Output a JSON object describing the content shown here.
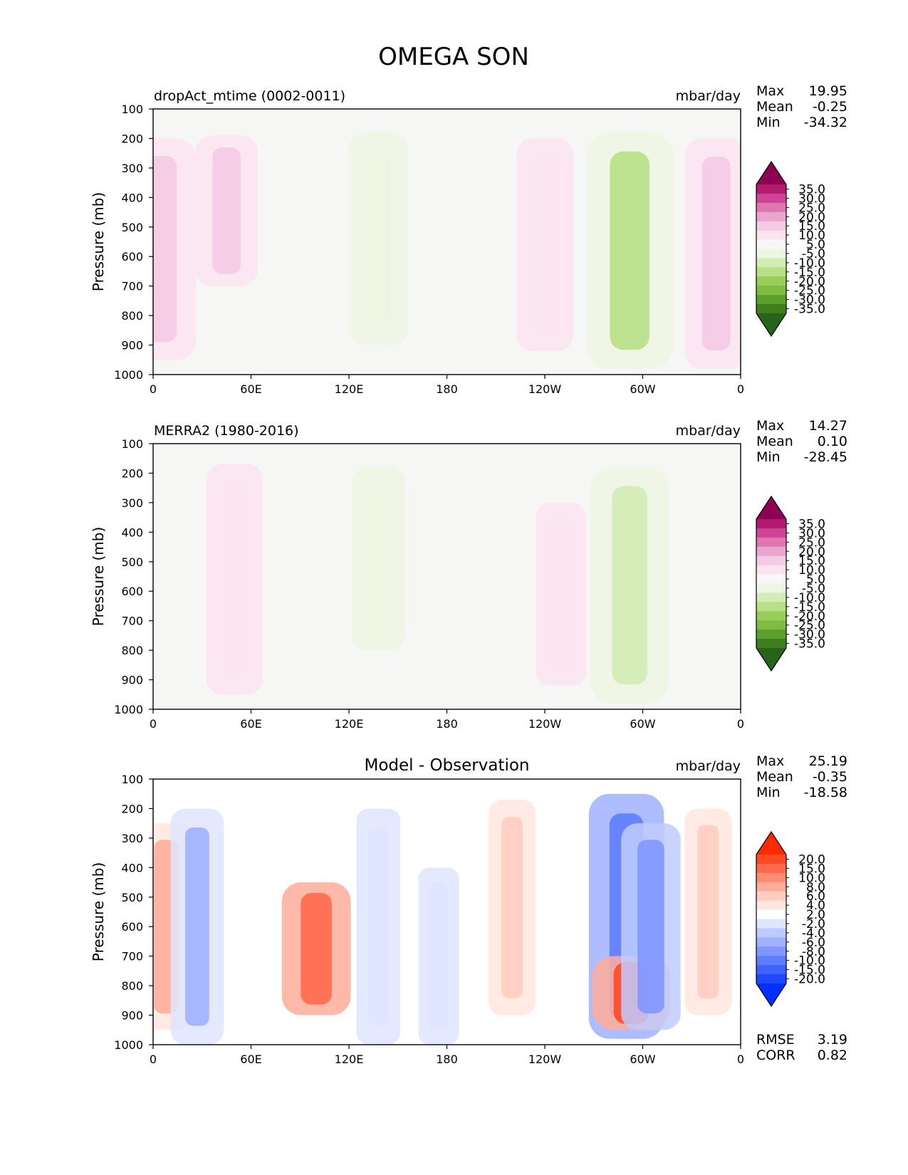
{
  "title": "OMEGA SON",
  "chart_data": [
    {
      "type": "heatmap",
      "title": "dropAct_mtime (0002-0011)",
      "units": "mbar/day",
      "ylabel": "Pressure (mb)",
      "ylim": [
        1000,
        100
      ],
      "xticks": [
        "0",
        "60E",
        "120E",
        "180",
        "120W",
        "60W",
        "0"
      ],
      "yticks": [
        "100",
        "200",
        "300",
        "400",
        "500",
        "600",
        "700",
        "800",
        "900",
        "1000"
      ],
      "stats": [
        {
          "label": "Max",
          "value": "19.95"
        },
        {
          "label": "Mean",
          "value": "-0.25"
        },
        {
          "label": "Min",
          "value": "-34.32"
        }
      ],
      "colorbar": {
        "levels": [
          "35.0",
          "30.0",
          "25.0",
          "20.0",
          "15.0",
          "10.0",
          "5.0",
          "-5.0",
          "-10.0",
          "-15.0",
          "-20.0",
          "-25.0",
          "-30.0",
          "-35.0"
        ],
        "colors": [
          "#8e0152",
          "#b3196d",
          "#cf4595",
          "#de77ae",
          "#eba5cf",
          "#f4cae4",
          "#fbe4f0",
          "#f7f7f7",
          "#edf6e2",
          "#d3ebb4",
          "#b8e186",
          "#98cd59",
          "#7fbc41",
          "#5c9f2c",
          "#3f7e1f",
          "#276419"
        ],
        "extend": "both"
      },
      "features": [
        {
          "lon": 5,
          "p_top": 200,
          "p_bot": 950,
          "value": 12
        },
        {
          "lon": 45,
          "p_top": 190,
          "p_bot": 700,
          "value": 10
        },
        {
          "lon": 138,
          "p_top": 180,
          "p_bot": 900,
          "value": -9
        },
        {
          "lon": 240,
          "p_top": 200,
          "p_bot": 920,
          "value": 8
        },
        {
          "lon": 292,
          "p_top": 180,
          "p_bot": 980,
          "value": -18
        },
        {
          "lon": 345,
          "p_top": 200,
          "p_bot": 980,
          "value": 10
        }
      ]
    },
    {
      "type": "heatmap",
      "title": "MERRA2 (1980-2016)",
      "units": "mbar/day",
      "ylabel": "Pressure (mb)",
      "ylim": [
        1000,
        100
      ],
      "xticks": [
        "0",
        "60E",
        "120E",
        "180",
        "120W",
        "60W",
        "0"
      ],
      "yticks": [
        "100",
        "200",
        "300",
        "400",
        "500",
        "600",
        "700",
        "800",
        "900",
        "1000"
      ],
      "stats": [
        {
          "label": "Max",
          "value": "14.27"
        },
        {
          "label": "Mean",
          "value": "0.10"
        },
        {
          "label": "Min",
          "value": "-28.45"
        }
      ],
      "colorbar": {
        "levels": [
          "35.0",
          "30.0",
          "25.0",
          "20.0",
          "15.0",
          "10.0",
          "5.0",
          "-5.0",
          "-10.0",
          "-15.0",
          "-20.0",
          "-25.0",
          "-30.0",
          "-35.0"
        ],
        "colors": [
          "#8e0152",
          "#b3196d",
          "#cf4595",
          "#de77ae",
          "#eba5cf",
          "#f4cae4",
          "#fbe4f0",
          "#f7f7f7",
          "#edf6e2",
          "#d3ebb4",
          "#b8e186",
          "#98cd59",
          "#7fbc41",
          "#5c9f2c",
          "#3f7e1f",
          "#276419"
        ],
        "extend": "both"
      },
      "features": [
        {
          "lon": 50,
          "p_top": 170,
          "p_bot": 950,
          "value": 8
        },
        {
          "lon": 138,
          "p_top": 180,
          "p_bot": 800,
          "value": -7
        },
        {
          "lon": 292,
          "p_top": 180,
          "p_bot": 980,
          "value": -15
        },
        {
          "lon": 250,
          "p_top": 300,
          "p_bot": 920,
          "value": 6
        }
      ]
    },
    {
      "type": "heatmap",
      "title": "Model - Observation",
      "units": "mbar/day",
      "ylabel": "Pressure (mb)",
      "ylim": [
        1000,
        100
      ],
      "xticks": [
        "0",
        "60E",
        "120E",
        "180",
        "120W",
        "60W",
        "0"
      ],
      "yticks": [
        "100",
        "200",
        "300",
        "400",
        "500",
        "600",
        "700",
        "800",
        "900",
        "1000"
      ],
      "stats": [
        {
          "label": "Max",
          "value": "25.19"
        },
        {
          "label": "Mean",
          "value": "-0.35"
        },
        {
          "label": "Min",
          "value": "-18.58"
        }
      ],
      "extra_stats": [
        {
          "label": "RMSE",
          "value": "3.19"
        },
        {
          "label": "CORR",
          "value": "0.82"
        }
      ],
      "colorbar": {
        "levels": [
          "20.0",
          "15.0",
          "10.0",
          "8.0",
          "6.0",
          "4.0",
          "2.0",
          "-2.0",
          "-4.0",
          "-6.0",
          "-8.0",
          "-10.0",
          "-15.0",
          "-20.0"
        ],
        "colors": [
          "#ff2a00",
          "#ff4a26",
          "#ff6a4d",
          "#ff8c73",
          "#ffad99",
          "#ffcdbf",
          "#ffe6df",
          "#ffffff",
          "#dfe5ff",
          "#bfcbff",
          "#9fb1ff",
          "#7f97ff",
          "#5f7dff",
          "#3f63ff",
          "#1f49ff",
          "#002fff"
        ],
        "extend": "both"
      },
      "features": [
        {
          "lon": 8,
          "p_top": 250,
          "p_bot": 950,
          "value": 7
        },
        {
          "lon": 27,
          "p_top": 200,
          "p_bot": 1000,
          "value": -7
        },
        {
          "lon": 100,
          "p_top": 450,
          "p_bot": 900,
          "value": 12
        },
        {
          "lon": 138,
          "p_top": 200,
          "p_bot": 1000,
          "value": -4
        },
        {
          "lon": 175,
          "p_top": 400,
          "p_bot": 1000,
          "value": -3
        },
        {
          "lon": 220,
          "p_top": 170,
          "p_bot": 900,
          "value": 5
        },
        {
          "lon": 290,
          "p_top": 150,
          "p_bot": 980,
          "value": -14
        },
        {
          "lon": 293,
          "p_top": 700,
          "p_bot": 950,
          "value": 15
        },
        {
          "lon": 305,
          "p_top": 250,
          "p_bot": 950,
          "value": -9
        },
        {
          "lon": 340,
          "p_top": 200,
          "p_bot": 900,
          "value": 5
        }
      ]
    }
  ]
}
